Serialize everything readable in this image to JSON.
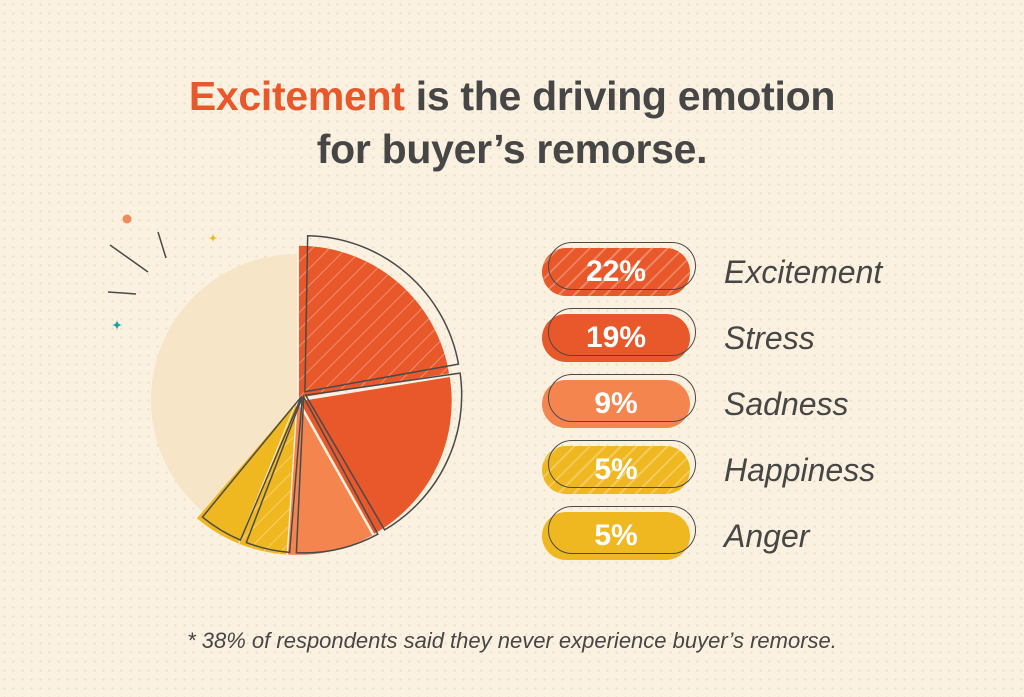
{
  "title": {
    "highlight": "Excitement",
    "rest_line1": " is the driving emotion",
    "line2": "for buyer’s remorse."
  },
  "chart_data": {
    "type": "pie",
    "title": "Excitement is the driving emotion for buyer’s remorse.",
    "slices": [
      {
        "label": "Excitement",
        "value": 22,
        "value_label": "22%",
        "color": "#e8582a",
        "hatched": true
      },
      {
        "label": "Stress",
        "value": 19,
        "value_label": "19%",
        "color": "#e8582a",
        "hatched": false
      },
      {
        "label": "Sadness",
        "value": 9,
        "value_label": "9%",
        "color": "#f5854f",
        "hatched": false
      },
      {
        "label": "Happiness",
        "value": 5,
        "value_label": "5%",
        "color": "#f0b820",
        "hatched": true
      },
      {
        "label": "Anger",
        "value": 5,
        "value_label": "5%",
        "color": "#f0b820",
        "hatched": false
      },
      {
        "label": "",
        "value": 38,
        "value_label": "",
        "color": "#f6e5c7",
        "hatched": false
      }
    ],
    "legend_position": "right"
  },
  "footnote": "* 38% of respondents said they never experience buyer’s remorse.",
  "decor_colors": {
    "dot": "#f08a5d",
    "sparkle_yellow": "#f0b820",
    "sparkle_teal": "#1aa5a0",
    "ink": "#4a4a4a"
  }
}
